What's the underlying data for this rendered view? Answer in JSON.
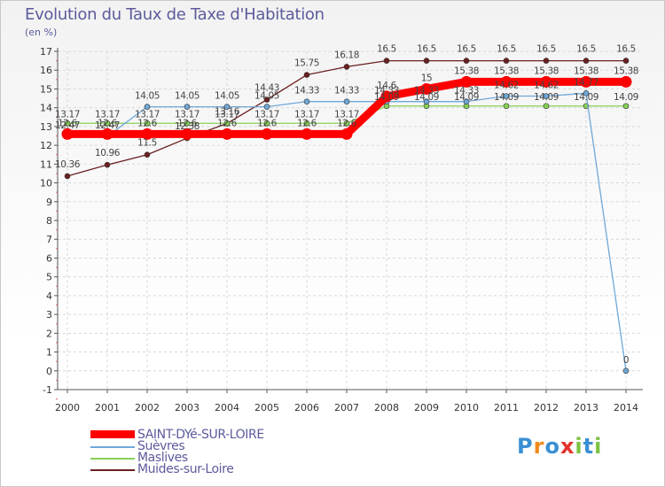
{
  "title": "Evolution du Taux de Taxe d'Habitation",
  "subtitle": "(en %)",
  "brand": {
    "letters": [
      "P",
      "r",
      "o",
      "x",
      "i",
      "t",
      "i"
    ],
    "colors": [
      "#3a8fd4",
      "#f28a1e",
      "#3a8fd4",
      "#e4332a",
      "#7cc243",
      "#3a8fd4",
      "#7cc243"
    ]
  },
  "chart_data": {
    "type": "line",
    "title": "Evolution du Taux de Taxe d'Habitation",
    "ylabel": "(en %)",
    "xlabel": "",
    "ylim": [
      -1,
      17
    ],
    "yticks": [
      "-1",
      "0",
      "1",
      "2",
      "3",
      "4",
      "5",
      "6",
      "7",
      "8",
      "9",
      "10",
      "11",
      "12",
      "13",
      "14",
      "15",
      "16",
      "17"
    ],
    "categories": [
      "2000",
      "2001",
      "2002",
      "2003",
      "2004",
      "2005",
      "2006",
      "2007",
      "2008",
      "2009",
      "2010",
      "2011",
      "2012",
      "2013",
      "2014"
    ],
    "series": [
      {
        "name": "Muides-sur-Loire",
        "color": "#6b1f1f",
        "values": [
          10.36,
          10.96,
          11.5,
          12.38,
          13.16,
          14.43,
          15.75,
          16.18,
          16.5,
          16.5,
          16.5,
          16.5,
          16.5,
          16.5,
          16.5
        ],
        "labels": [
          "10.36",
          "10.96",
          "11.5",
          "12.38",
          "13.16",
          "14.43",
          "15.75",
          "16.18",
          "16.5",
          "16.5",
          "16.5",
          "16.5",
          "16.5",
          "16.5",
          "16.5"
        ]
      },
      {
        "name": "Maslives",
        "color": "#88d058",
        "values": [
          13.17,
          13.17,
          13.17,
          13.17,
          13.17,
          13.17,
          13.17,
          13.17,
          14.09,
          14.09,
          14.09,
          14.09,
          14.09,
          14.09,
          14.09
        ],
        "labels": [
          "13.17",
          "13.17",
          "13.17",
          "13.17",
          "13.17",
          "13.17",
          "13.17",
          "13.17",
          "14.09",
          "14.09",
          "14.09",
          "14.09",
          "14.09",
          "14.09",
          "14.09"
        ]
      },
      {
        "name": "Suèvres",
        "color": "#6fa8d8",
        "values": [
          12.47,
          12.47,
          14.05,
          14.05,
          14.05,
          14.05,
          14.33,
          14.33,
          14.33,
          14.33,
          14.33,
          14.62,
          14.62,
          14.77,
          0
        ],
        "labels": [
          "12.47",
          "12.47",
          "14.05",
          "14.05",
          "14.05",
          "14.05",
          "14.33",
          "14.33",
          "14.33",
          "14.33",
          "14.33",
          "14.62",
          "14.62",
          "14.77",
          "0"
        ]
      },
      {
        "name": "SAINT-DYé-SUR-LOIRE",
        "color": "#ff0000",
        "values": [
          12.6,
          12.6,
          12.6,
          12.6,
          12.6,
          12.6,
          12.6,
          12.6,
          14.6,
          15.0,
          15.38,
          15.38,
          15.38,
          15.38,
          15.38
        ],
        "labels": [
          "12.6",
          "12.6",
          "12.6",
          "12.6",
          "12.6",
          "12.6",
          "12.6",
          "12.6",
          "14.6",
          "15",
          "15.38",
          "15.38",
          "15.38",
          "15.38",
          "15.38"
        ]
      }
    ]
  },
  "legend": [
    {
      "label": "SAINT-DYé-SUR-LOIRE",
      "color": "#ff0000"
    },
    {
      "label": "Suèvres",
      "color": "#6fa8d8"
    },
    {
      "label": "Maslives",
      "color": "#88d058"
    },
    {
      "label": "Muides-sur-Loire",
      "color": "#6b1f1f"
    }
  ]
}
